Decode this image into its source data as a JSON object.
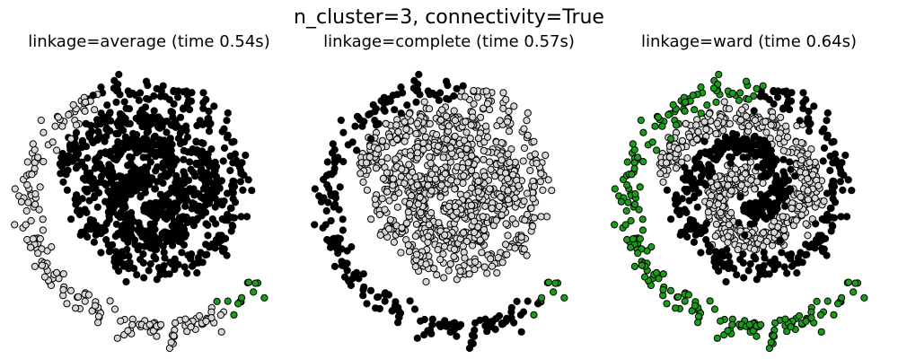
{
  "figure": {
    "title": "n_cluster=3, connectivity=True"
  },
  "colors": {
    "cluster_black": "#000000",
    "cluster_light": "#d9d9d9",
    "cluster_green": "#1a9e1a",
    "edge": "#000000"
  },
  "chart_data": [
    {
      "type": "scatter",
      "title": "linkage=average (time 0.54s)",
      "axes_visible": false,
      "xlabel": "",
      "ylabel": "",
      "xlim": [
        -11.5,
        11.5
      ],
      "ylim": [
        -9.5,
        13.5
      ],
      "clusters": {
        "black": {
          "inner": [
            0,
            9.2
          ],
          "outer": [
            0,
            11.5
          ]
        },
        "light": {
          "outer": [
            11.5,
            14.7
          ]
        },
        "green": {
          "outer": [
            14.7,
            15.0
          ]
        }
      }
    },
    {
      "type": "scatter",
      "title": "linkage=complete (time 0.57s)",
      "axes_visible": false,
      "xlabel": "",
      "ylabel": "",
      "xlim": [
        -11.5,
        11.5
      ],
      "ylim": [
        -9.5,
        13.5
      ],
      "clusters": {
        "light": {
          "inner": [
            0,
            9.2
          ],
          "outer": [
            0,
            10.9
          ]
        },
        "black": {
          "outer": [
            10.9,
            14.8
          ]
        },
        "green": {
          "outer": [
            14.8,
            15.0
          ]
        }
      }
    },
    {
      "type": "scatter",
      "title": "linkage=ward (time 0.64s)",
      "axes_visible": false,
      "xlabel": "",
      "ylabel": "",
      "xlim": [
        -11.5,
        11.5
      ],
      "ylim": [
        -9.5,
        13.5
      ],
      "clusters": {
        "light": {
          "inner": [
            0,
            9.2
          ]
        },
        "black": {
          "outer": [
            0,
            10.9
          ]
        },
        "green": {
          "outer": [
            10.9,
            15.0
          ]
        }
      }
    }
  ]
}
